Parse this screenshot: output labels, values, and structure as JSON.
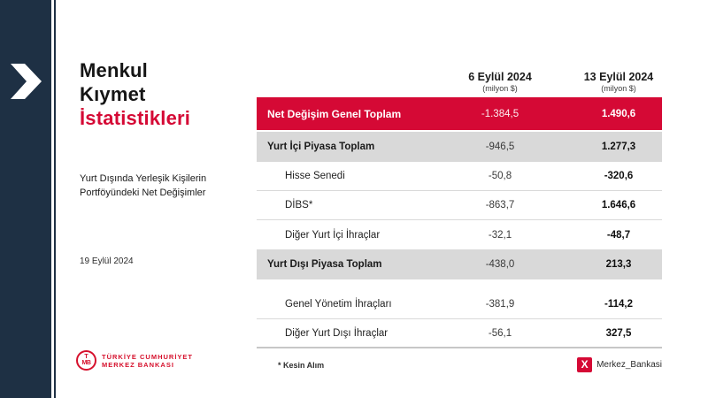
{
  "colors": {
    "accent_red": "#d50935",
    "navy": "#1e3044",
    "gray_row": "#d9d9d9",
    "logo_red": "#d6112d"
  },
  "title": {
    "line1": "Menkul",
    "line2": "Kıymet",
    "line3": "İstatistikleri"
  },
  "subtitle": "Yurt Dışında Yerleşik Kişilerin Portföyündeki Net Değişimler",
  "date": "19 Eylül 2024",
  "logo": {
    "monogram_top": "T",
    "monogram_bottom": "MB",
    "line1": "TÜRKİYE CUMHURİYET",
    "line2": "MERKEZ BANKASI"
  },
  "table": {
    "col_headers": [
      {
        "title": "6 Eylül 2024",
        "unit": "(milyon $)",
        "bold": false
      },
      {
        "title": "13 Eylül 2024",
        "unit": "(milyon $)",
        "bold": true
      }
    ],
    "rows": [
      {
        "label": "Net Değişim Genel Toplam",
        "v1": "-1.384,5",
        "v2": "1.490,6",
        "style": "red",
        "indent": false,
        "sep_after": false,
        "gap_before": false,
        "end": false
      },
      {
        "label": "Yurt İçi Piyasa Toplam",
        "v1": "-946,5",
        "v2": "1.277,3",
        "style": "gray",
        "indent": false,
        "sep_after": false,
        "gap_before": false,
        "end": false
      },
      {
        "label": "Hisse Senedi",
        "v1": "-50,8",
        "v2": "-320,6",
        "style": "white",
        "indent": true,
        "sep_after": true,
        "gap_before": false,
        "end": false
      },
      {
        "label": "DİBS*",
        "v1": "-863,7",
        "v2": "1.646,6",
        "style": "white",
        "indent": true,
        "sep_after": true,
        "gap_before": false,
        "end": false
      },
      {
        "label": "Diğer Yurt İçi İhraçlar",
        "v1": "-32,1",
        "v2": "-48,7",
        "style": "white",
        "indent": true,
        "sep_after": false,
        "gap_before": false,
        "end": false
      },
      {
        "label": "Yurt Dışı Piyasa Toplam",
        "v1": "-438,0",
        "v2": "213,3",
        "style": "gray",
        "indent": false,
        "sep_after": false,
        "gap_before": false,
        "end": false
      },
      {
        "label": "Genel Yönetim İhraçları",
        "v1": "-381,9",
        "v2": "-114,2",
        "style": "white",
        "indent": true,
        "sep_after": true,
        "gap_before": true,
        "end": false
      },
      {
        "label": "Diğer Yurt Dışı İhraçlar",
        "v1": "-56,1",
        "v2": "327,5",
        "style": "white",
        "indent": true,
        "sep_after": false,
        "gap_before": false,
        "end": true
      }
    ]
  },
  "footnote": "* Kesin Alım",
  "social": {
    "icon": "X",
    "handle": "Merkez_Bankasi"
  }
}
